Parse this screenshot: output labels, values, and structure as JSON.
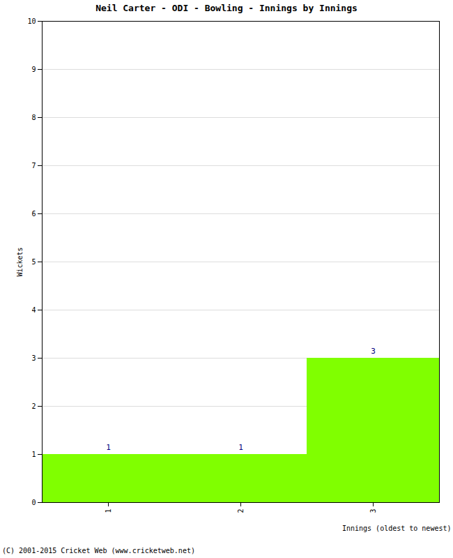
{
  "chart_data": {
    "type": "bar",
    "title": "Neil Carter - ODI - Bowling - Innings by Innings",
    "x_label": "Innings (oldest to newest)",
    "y_label": "Wickets",
    "caption": "(C) 2001-2015 Cricket Web (www.cricketweb.net)",
    "categories": [
      "1",
      "2",
      "3"
    ],
    "values": [
      1,
      1,
      3
    ],
    "color": "#80ff00",
    "ylim": [
      0,
      10
    ],
    "yticks": [
      0,
      1,
      2,
      3,
      4,
      5,
      6,
      7,
      8,
      9,
      10
    ],
    "grid": true,
    "data_labels": true
  }
}
